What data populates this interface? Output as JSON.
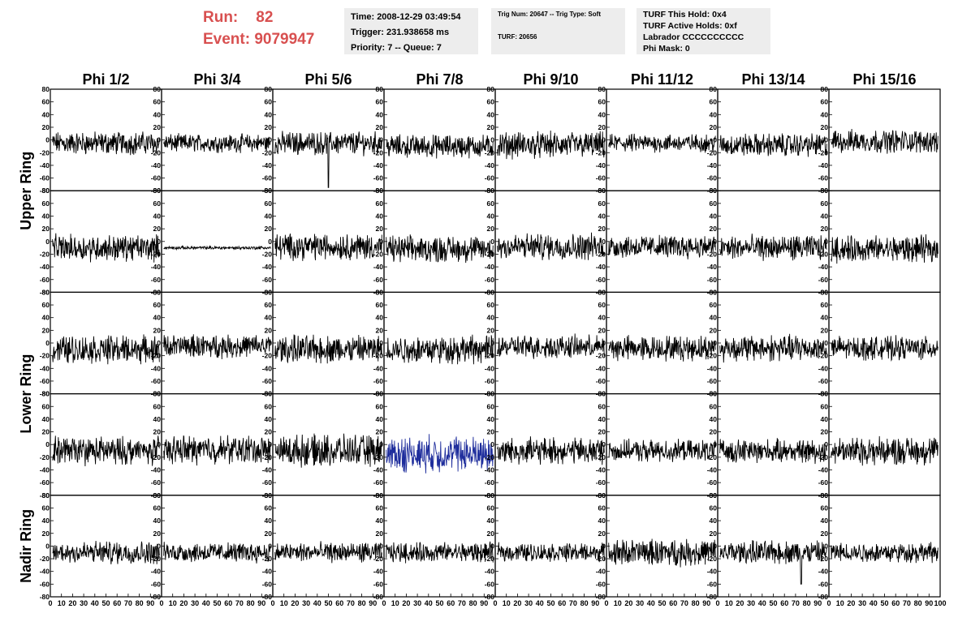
{
  "header": {
    "run_label": "Run:",
    "run_value": "82",
    "event_label": "Event:",
    "event_value": "9079947"
  },
  "info_boxes": {
    "time_line": "Time: 2008-12-29 03:49:54",
    "trigger_line": "Trigger: 231.938658 ms",
    "priority_line": "Priority: 7 -- Queue: 7",
    "trig_num_line": "Trig Num: 20647 -- Trig Type: Soft",
    "turf_line": "TURF: 20656",
    "turf_hold_line": "TURF This Hold: 0x4",
    "turf_active_line": "TURF Active Holds: 0xf",
    "labrador_line": "Labrador CCCCCCCCCC",
    "phi_mask_line": "Phi Mask: 0"
  },
  "chart_data": {
    "type": "line",
    "columns": [
      "Phi 1/2",
      "Phi 3/4",
      "Phi 5/6",
      "Phi 7/8",
      "Phi 9/10",
      "Phi 11/12",
      "Phi 13/14",
      "Phi 15/16"
    ],
    "ring_labels": [
      {
        "label": "Upper Ring",
        "rows": [
          0,
          1
        ]
      },
      {
        "label": "Lower Ring",
        "rows": [
          2,
          3
        ]
      },
      {
        "label": "Nadir Ring",
        "rows": [
          4
        ]
      }
    ],
    "rows": 5,
    "xlim": [
      0,
      100
    ],
    "ylim": [
      -80,
      80
    ],
    "x_ticks": [
      "0",
      "10",
      "20",
      "30",
      "40",
      "50",
      "60",
      "70",
      "80",
      "90",
      "100"
    ],
    "y_ticks": [
      "80",
      "60",
      "40",
      "20",
      "0",
      "-20",
      "-40",
      "-60",
      "-80"
    ],
    "trace_color": "#000000",
    "highlight_color": "#1e2d9c",
    "highlight_panel": {
      "row": 3,
      "col": 3
    },
    "flat_panel": {
      "row": 1,
      "col": 1
    },
    "panels": [
      [
        {
          "offset": -5,
          "amp": 14
        },
        {
          "offset": -5,
          "amp": 11
        },
        {
          "offset": -5,
          "amp": 14,
          "spike": [
            50,
            -75
          ]
        },
        {
          "offset": -10,
          "amp": 14
        },
        {
          "offset": -8,
          "amp": 16
        },
        {
          "offset": -5,
          "amp": 11
        },
        {
          "offset": -8,
          "amp": 14
        },
        {
          "offset": -2,
          "amp": 14
        }
      ],
      [
        {
          "offset": -10,
          "amp": 16
        },
        {
          "offset": -10,
          "amp": 2
        },
        {
          "offset": -8,
          "amp": 16
        },
        {
          "offset": -12,
          "amp": 16
        },
        {
          "offset": -8,
          "amp": 16
        },
        {
          "offset": -8,
          "amp": 14
        },
        {
          "offset": -10,
          "amp": 15
        },
        {
          "offset": -12,
          "amp": 16
        }
      ],
      [
        {
          "offset": -10,
          "amp": 17
        },
        {
          "offset": -5,
          "amp": 14
        },
        {
          "offset": -10,
          "amp": 17
        },
        {
          "offset": -10,
          "amp": 17
        },
        {
          "offset": -6,
          "amp": 14
        },
        {
          "offset": -8,
          "amp": 15
        },
        {
          "offset": -8,
          "amp": 16
        },
        {
          "offset": -8,
          "amp": 14
        }
      ],
      [
        {
          "offset": -10,
          "amp": 17
        },
        {
          "offset": -8,
          "amp": 17
        },
        {
          "offset": -10,
          "amp": 19
        },
        {
          "offset": -15,
          "amp": 22
        },
        {
          "offset": -10,
          "amp": 16
        },
        {
          "offset": -10,
          "amp": 13
        },
        {
          "offset": -10,
          "amp": 14
        },
        {
          "offset": -10,
          "amp": 17
        }
      ],
      [
        {
          "offset": -10,
          "amp": 14
        },
        {
          "offset": -10,
          "amp": 12
        },
        {
          "offset": -10,
          "amp": 12
        },
        {
          "offset": -10,
          "amp": 12
        },
        {
          "offset": -10,
          "amp": 11
        },
        {
          "offset": -10,
          "amp": 16
        },
        {
          "offset": -10,
          "amp": 14,
          "spike": [
            75,
            -60
          ]
        },
        {
          "offset": -10,
          "amp": 12
        }
      ]
    ]
  }
}
